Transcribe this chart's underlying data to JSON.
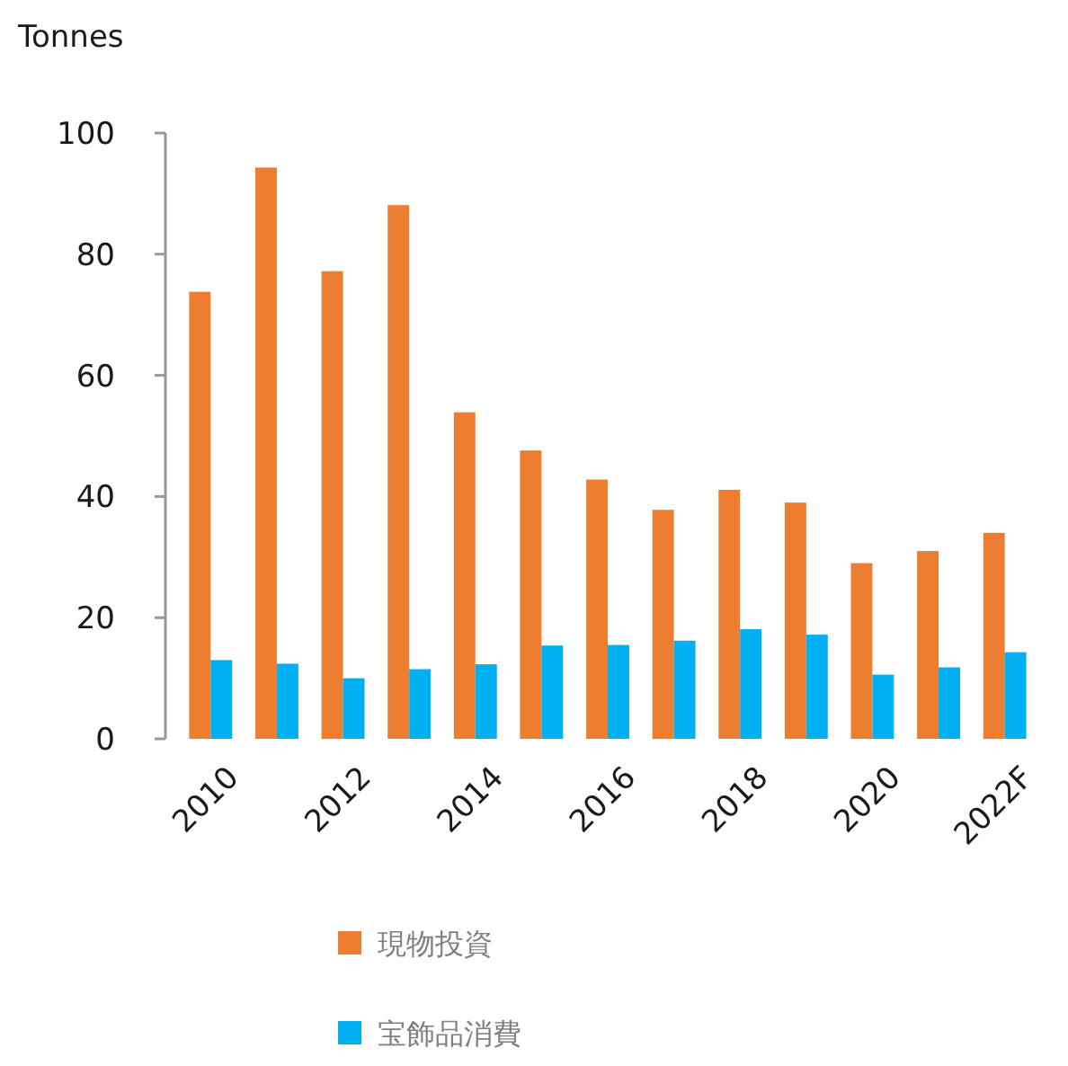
{
  "chart_data": {
    "type": "bar",
    "ylabel": "Tonnes",
    "categories": [
      "2010",
      null,
      "2012",
      null,
      "2014",
      null,
      "2016",
      null,
      "2018",
      null,
      "2020",
      null,
      "2022F"
    ],
    "series": [
      {
        "name": "現物投資",
        "color": "#ed7d31",
        "values": [
          73.8,
          94.3,
          77.2,
          88.1,
          53.9,
          47.6,
          42.8,
          37.8,
          41.1,
          39.0,
          29.0,
          31.0,
          34.0
        ]
      },
      {
        "name": "宝飾品消費",
        "color": "#00b0f0",
        "values": [
          13.0,
          12.4,
          10.0,
          11.5,
          12.3,
          15.4,
          15.5,
          16.2,
          18.1,
          17.2,
          10.6,
          11.8,
          14.3
        ]
      }
    ],
    "ylim": [
      0,
      100
    ],
    "yticks": [
      0,
      20,
      40,
      60,
      80,
      100
    ],
    "legend": "bottom"
  }
}
